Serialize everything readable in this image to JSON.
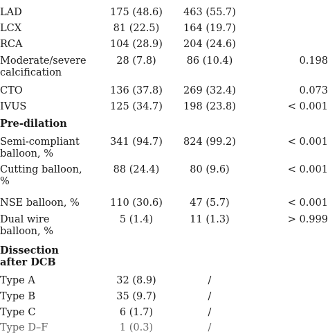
{
  "rows": [
    {
      "label": "LAD",
      "col1": "175 (48.6)",
      "col2": "463 (55.7)",
      "col3": ""
    },
    {
      "label": "LCX",
      "col1": "81 (22.5)",
      "col2": "164 (19.7)",
      "col3": ""
    },
    {
      "label": "RCA",
      "col1": "104 (28.9)",
      "col2": "204 (24.6)",
      "col3": ""
    },
    {
      "label": "Moderate/severe calcification",
      "col1": "28 (7.8)",
      "col2": "86 (10.4)",
      "col3": "0.198"
    },
    {
      "label": "CTO",
      "col1": "136 (37.8)",
      "col2": "269 (32.4)",
      "col3": "0.073"
    },
    {
      "label": "IVUS",
      "col1": "125 (34.7)",
      "col2": "198 (23.8)",
      "col3": "< 0.001"
    },
    {
      "label": "Pre-dilation",
      "col1": "",
      "col2": "",
      "col3": ""
    },
    {
      "label": "Semi-compliant balloon, %",
      "col1": "341 (94.7)",
      "col2": "824 (99.2)",
      "col3": "< 0.001"
    },
    {
      "label": "Cutting balloon, %",
      "col1": "88 (24.4)",
      "col2": "80 (9.6)",
      "col3": "< 0.001"
    },
    {
      "label": "NSE balloon, %",
      "col1": "110 (30.6)",
      "col2": "47 (5.7)",
      "col3": "< 0.001"
    },
    {
      "label": "Dual wire balloon, %",
      "col1": "5 (1.4)",
      "col2": "11 (1.3)",
      "col3": "> 0.999"
    },
    {
      "label": "Dissection after DCB",
      "col1": "",
      "col2": "",
      "col3": ""
    },
    {
      "label": "Type A",
      "col1": "32 (8.9)",
      "col2": "/",
      "col3": ""
    },
    {
      "label": "Type B",
      "col1": "35 (9.7)",
      "col2": "/",
      "col3": ""
    },
    {
      "label": "Type C",
      "col1": "6 (1.7)",
      "col2": "/",
      "col3": ""
    },
    {
      "label": "Type D–F",
      "col1": "1 (0.3)",
      "col2": "/",
      "col3": ""
    }
  ]
}
